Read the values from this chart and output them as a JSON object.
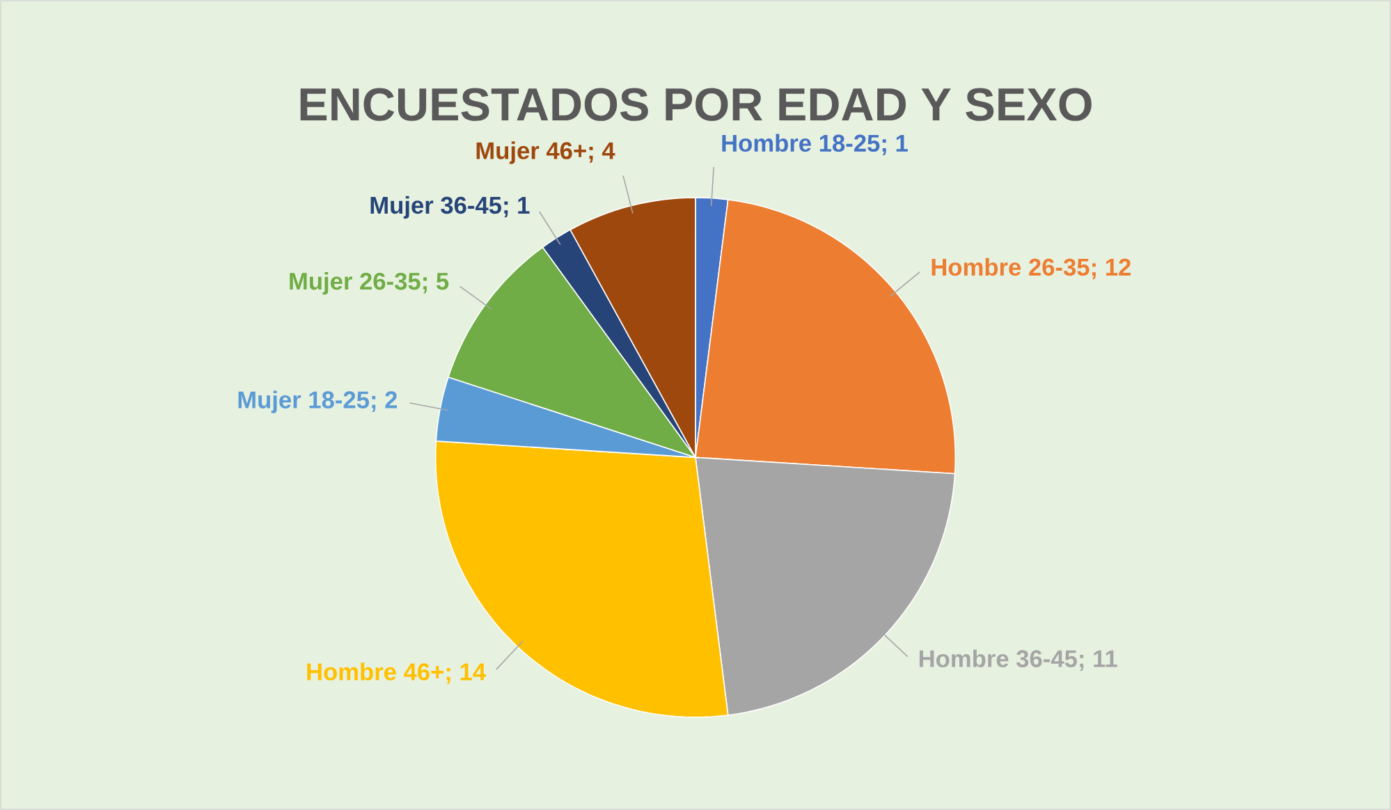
{
  "chart_data": {
    "type": "pie",
    "title": "ENCUESTADOS POR EDAD Y SEXO",
    "categories": [
      "Hombre 18-25",
      "Hombre 26-35",
      "Hombre 36-45",
      "Hombre 46+",
      "Mujer 18-25",
      "Mujer 26-35",
      "Mujer 36-45",
      "Mujer 46+"
    ],
    "values": [
      1,
      12,
      11,
      14,
      2,
      5,
      1,
      4
    ],
    "colors": [
      "#4472c4",
      "#ed7d31",
      "#a5a5a5",
      "#ffc000",
      "#5b9bd5",
      "#70ad47",
      "#264478",
      "#9e480e"
    ],
    "value_labels": [
      "; 1",
      "; 12",
      "; 11",
      "; 14",
      "; 2",
      "; 5",
      "; 1",
      "; 4"
    ]
  }
}
